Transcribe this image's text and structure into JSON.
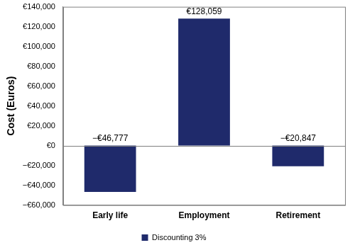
{
  "chart_data": {
    "type": "bar",
    "y_label": "Cost (Euros)",
    "categories": [
      "Early life",
      "Employment",
      "Retirement"
    ],
    "series": [
      {
        "name": "Discounting 3%",
        "color": "#1f2a6b",
        "values": [
          -46777,
          128059,
          -20847
        ],
        "value_labels": [
          "−€46,777",
          "€128,059",
          "−€20,847"
        ]
      }
    ],
    "ylim": [
      -60000,
      140000
    ],
    "yticks": [
      {
        "value": -60000,
        "label": "−€60,000"
      },
      {
        "value": -40000,
        "label": "−€40,000"
      },
      {
        "value": -20000,
        "label": "−€20,000"
      },
      {
        "value": 0,
        "label": "€0"
      },
      {
        "value": 20000,
        "label": "€20,000"
      },
      {
        "value": 40000,
        "label": "€40,000"
      },
      {
        "value": 60000,
        "label": "€60,000"
      },
      {
        "value": 80000,
        "label": "€80,000"
      },
      {
        "value": 100000,
        "label": "€100,000"
      },
      {
        "value": 120000,
        "label": "€120,000"
      },
      {
        "value": 140000,
        "label": "€140,000"
      }
    ],
    "grid": false,
    "legend": "bottom",
    "data_labels": true
  }
}
